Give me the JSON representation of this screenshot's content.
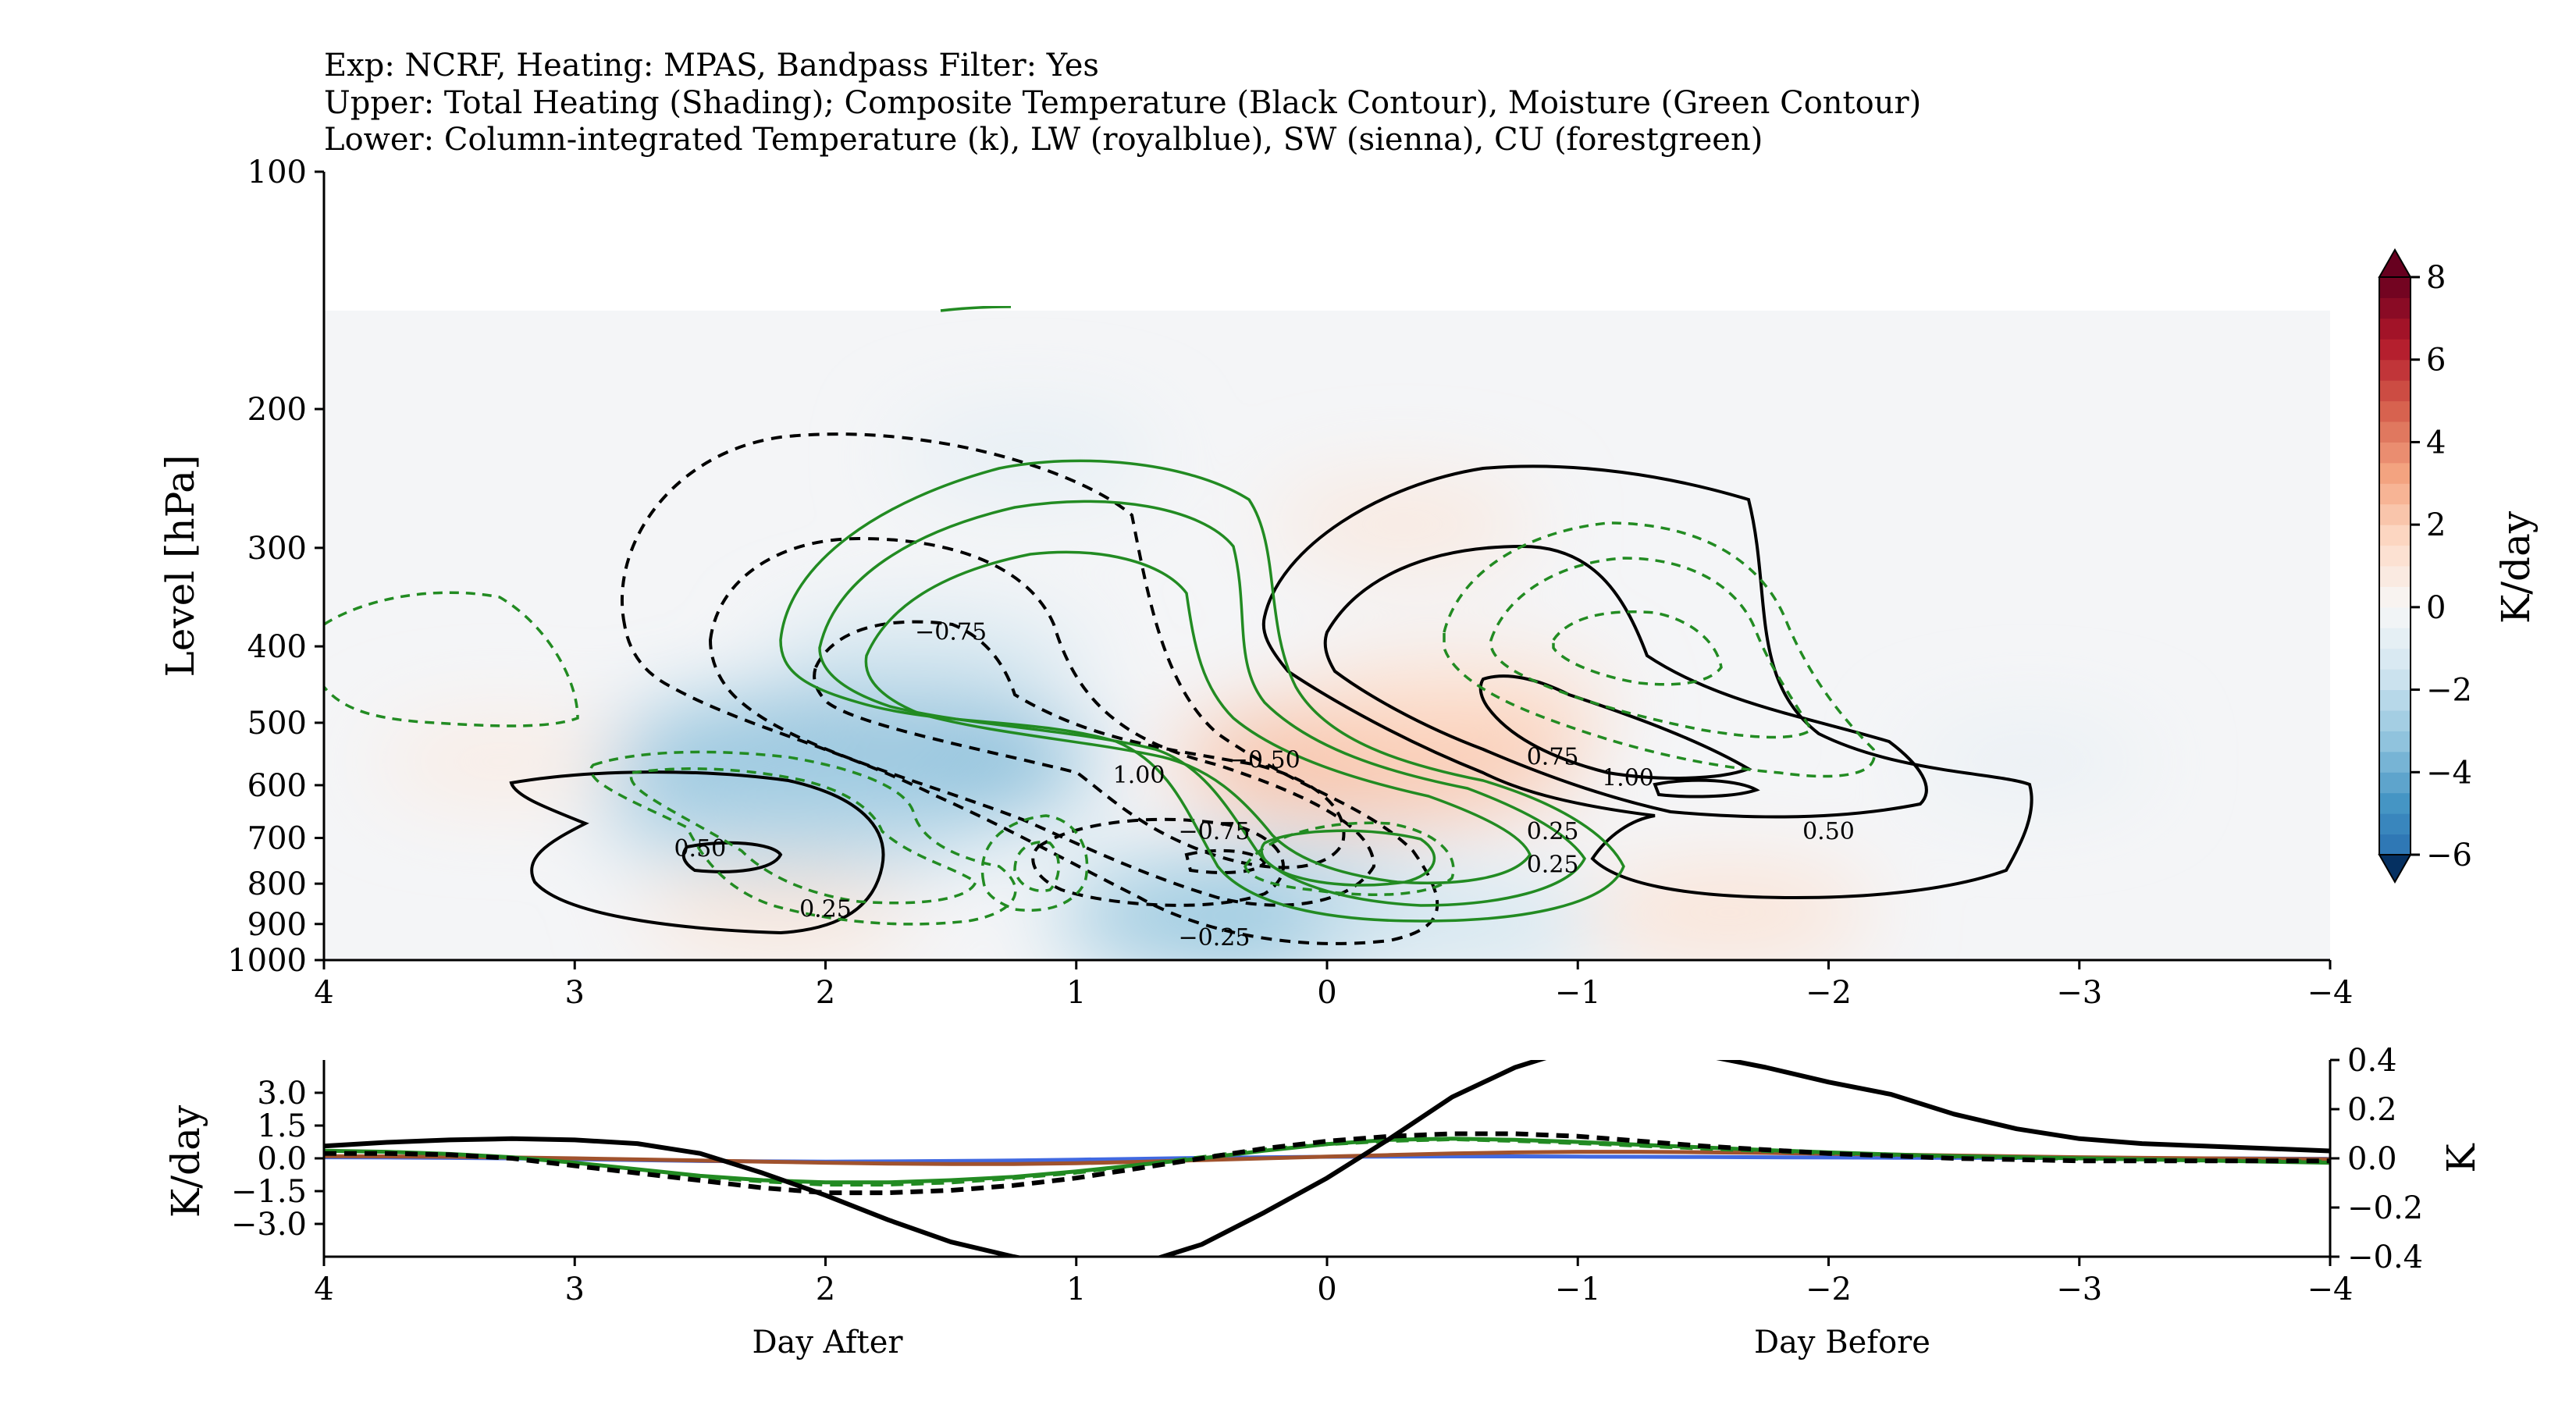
{
  "header_lines": [
    "Exp: NCRF, Heating: MPAS, Bandpass Filter: Yes",
    "Upper: Total Heating (Shading); Composite Temperature (Black Contour), Moisture (Green Contour)",
    "Lower: Column-integrated Temperature (k), LW (royalblue), SW (sienna), CU (forestgreen)"
  ],
  "colors": {
    "temperature": "#000000",
    "moisture": "#228b22",
    "lw": "#4169e1",
    "sw": "#a0522d",
    "cu": "#228b22",
    "cold": "#2166ac",
    "warm": "#d6604d"
  },
  "chart_data": [
    {
      "type": "heatmap",
      "description_contours": [
        "temperature (black)",
        "moisture (green)"
      ],
      "xlabel": "",
      "ylabel": "Level [hPa]",
      "xlim": [
        4,
        -4
      ],
      "ylim": [
        1000,
        100
      ],
      "yscale": "log",
      "xticks": [
        "4",
        "3",
        "2",
        "1",
        "0",
        "−1",
        "−2",
        "−3",
        "−4"
      ],
      "xtick_values": [
        4,
        3,
        2,
        1,
        0,
        -1,
        -2,
        -3,
        -4
      ],
      "yticks": [
        "100",
        "200",
        "300",
        "400",
        "500",
        "600",
        "700",
        "800",
        "900",
        "1000"
      ],
      "ytick_values": [
        100,
        200,
        300,
        400,
        500,
        600,
        700,
        800,
        900,
        1000
      ],
      "colorbar": {
        "label": "K/day",
        "ticks": [
          "8",
          "6",
          "4",
          "2",
          "0",
          "−2",
          "−4",
          "−6"
        ],
        "tick_values": [
          8,
          6,
          4,
          2,
          0,
          -2,
          -4,
          -6
        ],
        "range": [
          -6,
          8
        ],
        "extend": "both",
        "cmap": "RdBu_r"
      },
      "shading_blobs": [
        {
          "x": 1.9,
          "p": 560,
          "value": -3.5
        },
        {
          "x": 2.1,
          "p": 650,
          "value": -2.5
        },
        {
          "x": 1.6,
          "p": 420,
          "value": -1.5
        },
        {
          "x": 0.2,
          "p": 880,
          "value": -3.0
        },
        {
          "x": -0.5,
          "p": 900,
          "value": -1.5
        },
        {
          "x": 1.2,
          "p": 230,
          "value": -0.8
        },
        {
          "x": -2.8,
          "p": 560,
          "value": -0.6
        },
        {
          "x": -0.2,
          "p": 560,
          "value": 2.5
        },
        {
          "x": -0.5,
          "p": 480,
          "value": 1.5
        },
        {
          "x": -0.3,
          "p": 280,
          "value": 0.9
        },
        {
          "x": -1.6,
          "p": 870,
          "value": 1.2
        },
        {
          "x": 2.2,
          "p": 870,
          "value": 1.0
        },
        {
          "x": 3.3,
          "p": 560,
          "value": 0.7
        }
      ],
      "contour_labels": [
        {
          "text": "−0.75",
          "x": 1.5,
          "p": 385
        },
        {
          "text": "−0.50",
          "x": 0.25,
          "p": 560
        },
        {
          "text": "1.00",
          "x": 0.75,
          "p": 585
        },
        {
          "text": "−0.75",
          "x": 0.45,
          "p": 690
        },
        {
          "text": "0.50",
          "x": 2.5,
          "p": 725
        },
        {
          "text": "0.25",
          "x": 2.0,
          "p": 865
        },
        {
          "text": "−0.25",
          "x": 0.45,
          "p": 940
        },
        {
          "text": "0.75",
          "x": -0.9,
          "p": 555
        },
        {
          "text": "1.00",
          "x": -1.2,
          "p": 590
        },
        {
          "text": "0.25",
          "x": -0.9,
          "p": 690
        },
        {
          "text": "0.25",
          "x": -0.9,
          "p": 760
        },
        {
          "text": "0.50",
          "x": -2.0,
          "p": 690
        }
      ]
    },
    {
      "type": "line",
      "xlabel_left": "Day After",
      "xlabel_right": "Day Before",
      "ylabel": "K/day",
      "ylabel_right": "K",
      "xlim": [
        4,
        -4
      ],
      "ylim": [
        -4.5,
        4.5
      ],
      "ylim_right": [
        -0.4,
        0.4
      ],
      "xticks": [
        "4",
        "3",
        "2",
        "1",
        "0",
        "−1",
        "−2",
        "−3",
        "−4"
      ],
      "xtick_values": [
        4,
        3,
        2,
        1,
        0,
        -1,
        -2,
        -3,
        -4
      ],
      "yticks": [
        "3.0",
        "1.5",
        "0.0",
        "−1.5",
        "−3.0"
      ],
      "ytick_values": [
        3.0,
        1.5,
        0.0,
        -1.5,
        -3.0
      ],
      "yticks_right": [
        "0.4",
        "0.2",
        "0.0",
        "−0.2",
        "−0.4"
      ],
      "ytick_values_right": [
        0.4,
        0.2,
        0.0,
        -0.2,
        -0.4
      ],
      "x": [
        4,
        3.75,
        3.5,
        3.25,
        3,
        2.75,
        2.5,
        2.25,
        2,
        1.75,
        1.5,
        1.25,
        1,
        0.75,
        0.5,
        0.25,
        0,
        -0.25,
        -0.5,
        -0.75,
        -1,
        -1.25,
        -1.5,
        -1.75,
        -2,
        -2.25,
        -2.5,
        -2.75,
        -3,
        -3.25,
        -3.5,
        -3.75,
        -4
      ],
      "series": [
        {
          "name": "LW (royalblue)",
          "axis": "left",
          "color": "#4169e1",
          "dash": false,
          "values": [
            0.05,
            0.04,
            0.02,
            0.0,
            -0.04,
            -0.08,
            -0.12,
            -0.14,
            -0.15,
            -0.14,
            -0.12,
            -0.1,
            -0.06,
            -0.02,
            0.02,
            0.05,
            0.07,
            0.08,
            0.09,
            0.09,
            0.08,
            0.07,
            0.06,
            0.05,
            0.04,
            0.03,
            0.02,
            0.02,
            0.01,
            0.0,
            0.0,
            -0.01,
            -0.02
          ]
        },
        {
          "name": "SW (sienna)",
          "axis": "left",
          "color": "#a0522d",
          "dash": false,
          "values": [
            0.1,
            0.09,
            0.07,
            0.04,
            0.0,
            -0.05,
            -0.1,
            -0.15,
            -0.2,
            -0.24,
            -0.26,
            -0.26,
            -0.22,
            -0.16,
            -0.08,
            0.0,
            0.08,
            0.15,
            0.22,
            0.27,
            0.3,
            0.3,
            0.28,
            0.25,
            0.21,
            0.17,
            0.13,
            0.09,
            0.05,
            0.02,
            0.0,
            -0.02,
            -0.04
          ]
        },
        {
          "name": "CU (forestgreen)",
          "axis": "left",
          "color": "#228b22",
          "dash": false,
          "values": [
            0.35,
            0.3,
            0.2,
            0.05,
            -0.2,
            -0.5,
            -0.8,
            -1.0,
            -1.1,
            -1.1,
            -1.0,
            -0.85,
            -0.6,
            -0.3,
            0.0,
            0.35,
            0.65,
            0.85,
            0.9,
            0.85,
            0.75,
            0.62,
            0.5,
            0.38,
            0.27,
            0.18,
            0.1,
            0.05,
            0.0,
            -0.05,
            -0.1,
            -0.15,
            -0.2
          ]
        },
        {
          "name": "CU dashed (forestgreen)",
          "axis": "left",
          "color": "#228b22",
          "dash": true,
          "values": [
            0.3,
            0.25,
            0.15,
            0.0,
            -0.25,
            -0.55,
            -0.85,
            -1.05,
            -1.2,
            -1.2,
            -1.1,
            -0.9,
            -0.65,
            -0.3,
            0.05,
            0.4,
            0.65,
            0.8,
            0.88,
            0.8,
            0.7,
            0.58,
            0.45,
            0.34,
            0.24,
            0.15,
            0.08,
            0.02,
            -0.02,
            -0.06,
            -0.1,
            -0.13,
            -0.15
          ]
        },
        {
          "name": "Column-integrated Temperature (solid)",
          "axis": "right",
          "color": "#000000",
          "dash": false,
          "values": [
            0.05,
            0.065,
            0.075,
            0.08,
            0.075,
            0.06,
            0.02,
            -0.06,
            -0.15,
            -0.25,
            -0.34,
            -0.4,
            -0.45,
            -0.43,
            -0.35,
            -0.22,
            -0.08,
            0.08,
            0.25,
            0.37,
            0.45,
            0.45,
            0.42,
            0.37,
            0.31,
            0.26,
            0.18,
            0.12,
            0.08,
            0.06,
            0.05,
            0.04,
            0.03
          ]
        },
        {
          "name": "Column-integrated Temperature (dashed)",
          "axis": "right",
          "color": "#000000",
          "dash": true,
          "values": [
            0.02,
            0.02,
            0.015,
            0.0,
            -0.03,
            -0.06,
            -0.09,
            -0.12,
            -0.14,
            -0.14,
            -0.13,
            -0.11,
            -0.08,
            -0.04,
            0.0,
            0.04,
            0.07,
            0.09,
            0.1,
            0.1,
            0.09,
            0.07,
            0.05,
            0.035,
            0.02,
            0.01,
            0.0,
            -0.005,
            -0.01,
            -0.01,
            -0.01,
            -0.01,
            -0.01
          ]
        }
      ]
    }
  ]
}
